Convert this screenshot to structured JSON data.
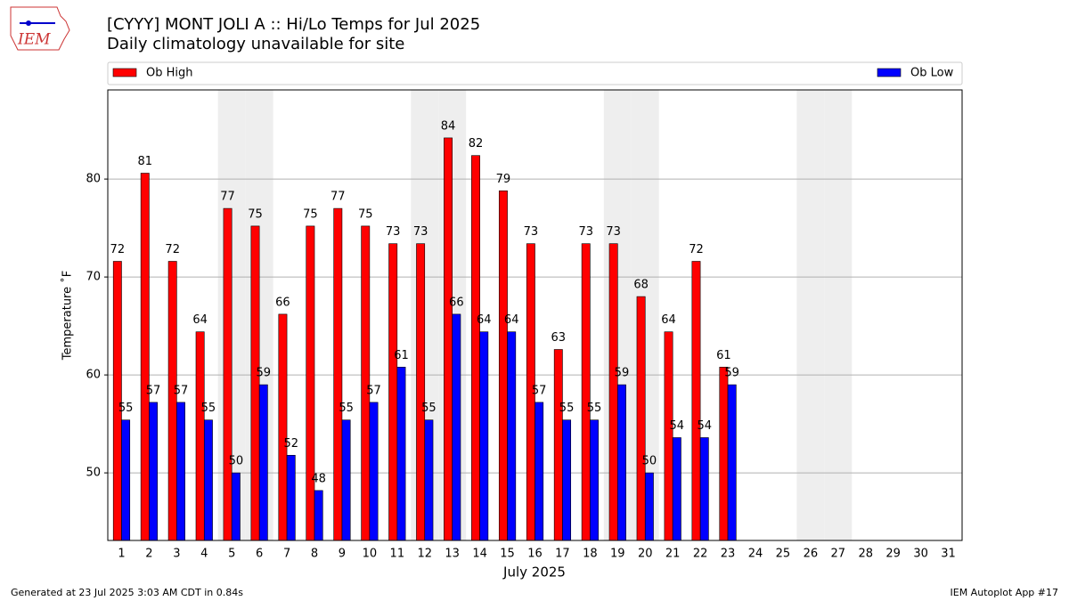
{
  "chart_data": {
    "type": "bar",
    "title": "[CYYY] MONT JOLI A :: Hi/Lo Temps for Jul 2025",
    "subtitle": "Daily climatology unavailable for site",
    "x_label": "July 2025",
    "y_label": "Temperature ˚F",
    "categories": [
      "1",
      "2",
      "3",
      "4",
      "5",
      "6",
      "7",
      "8",
      "9",
      "10",
      "11",
      "12",
      "13",
      "14",
      "15",
      "16",
      "17",
      "18",
      "19",
      "20",
      "21",
      "22",
      "23",
      "24",
      "25",
      "26",
      "27",
      "28",
      "29",
      "30",
      "31"
    ],
    "series": [
      {
        "name": "Ob High",
        "color": "#ff0000",
        "values": [
          71.6,
          80.6,
          71.6,
          64.4,
          77.0,
          75.2,
          66.2,
          75.2,
          77.0,
          75.2,
          73.4,
          73.4,
          84.2,
          82.4,
          78.8,
          73.4,
          62.6,
          73.4,
          73.4,
          68.0,
          64.4,
          71.6,
          60.8,
          null,
          null,
          null,
          null,
          null,
          null,
          null,
          null
        ],
        "value_labels": [
          "72",
          "81",
          "72",
          "64",
          "77",
          "75",
          "66",
          "75",
          "77",
          "75",
          "73",
          "73",
          "84",
          "82",
          "79",
          "73",
          "63",
          "73",
          "73",
          "68",
          "64",
          "72",
          "61",
          null,
          null,
          null,
          null,
          null,
          null,
          null,
          null
        ]
      },
      {
        "name": "Ob Low",
        "color": "#0000ff",
        "values": [
          55.4,
          57.2,
          57.2,
          55.4,
          50.0,
          59.0,
          51.8,
          48.2,
          55.4,
          57.2,
          60.8,
          55.4,
          66.2,
          64.4,
          64.4,
          57.2,
          55.4,
          55.4,
          59.0,
          50.0,
          53.6,
          53.6,
          59.0,
          null,
          null,
          null,
          null,
          null,
          null,
          null,
          null
        ],
        "value_labels": [
          "55",
          "57",
          "57",
          "55",
          "50",
          "59",
          "52",
          "48",
          "55",
          "57",
          "61",
          "55",
          "66",
          "64",
          "64",
          "57",
          "55",
          "55",
          "59",
          "50",
          "54",
          "54",
          "59",
          null,
          null,
          null,
          null,
          null,
          null,
          null,
          null
        ]
      }
    ],
    "shaded_categories": [
      "5",
      "6",
      "12",
      "13",
      "19",
      "20",
      "26",
      "27"
    ],
    "ylim": [
      43.1,
      89.1
    ],
    "yticks": [
      50,
      60,
      70,
      80
    ],
    "grid": true,
    "footer_left": "Generated at 23 Jul 2025 3:03 AM CDT in 0.84s",
    "footer_right": "IEM Autoplot App #17"
  },
  "logo": "IEM"
}
